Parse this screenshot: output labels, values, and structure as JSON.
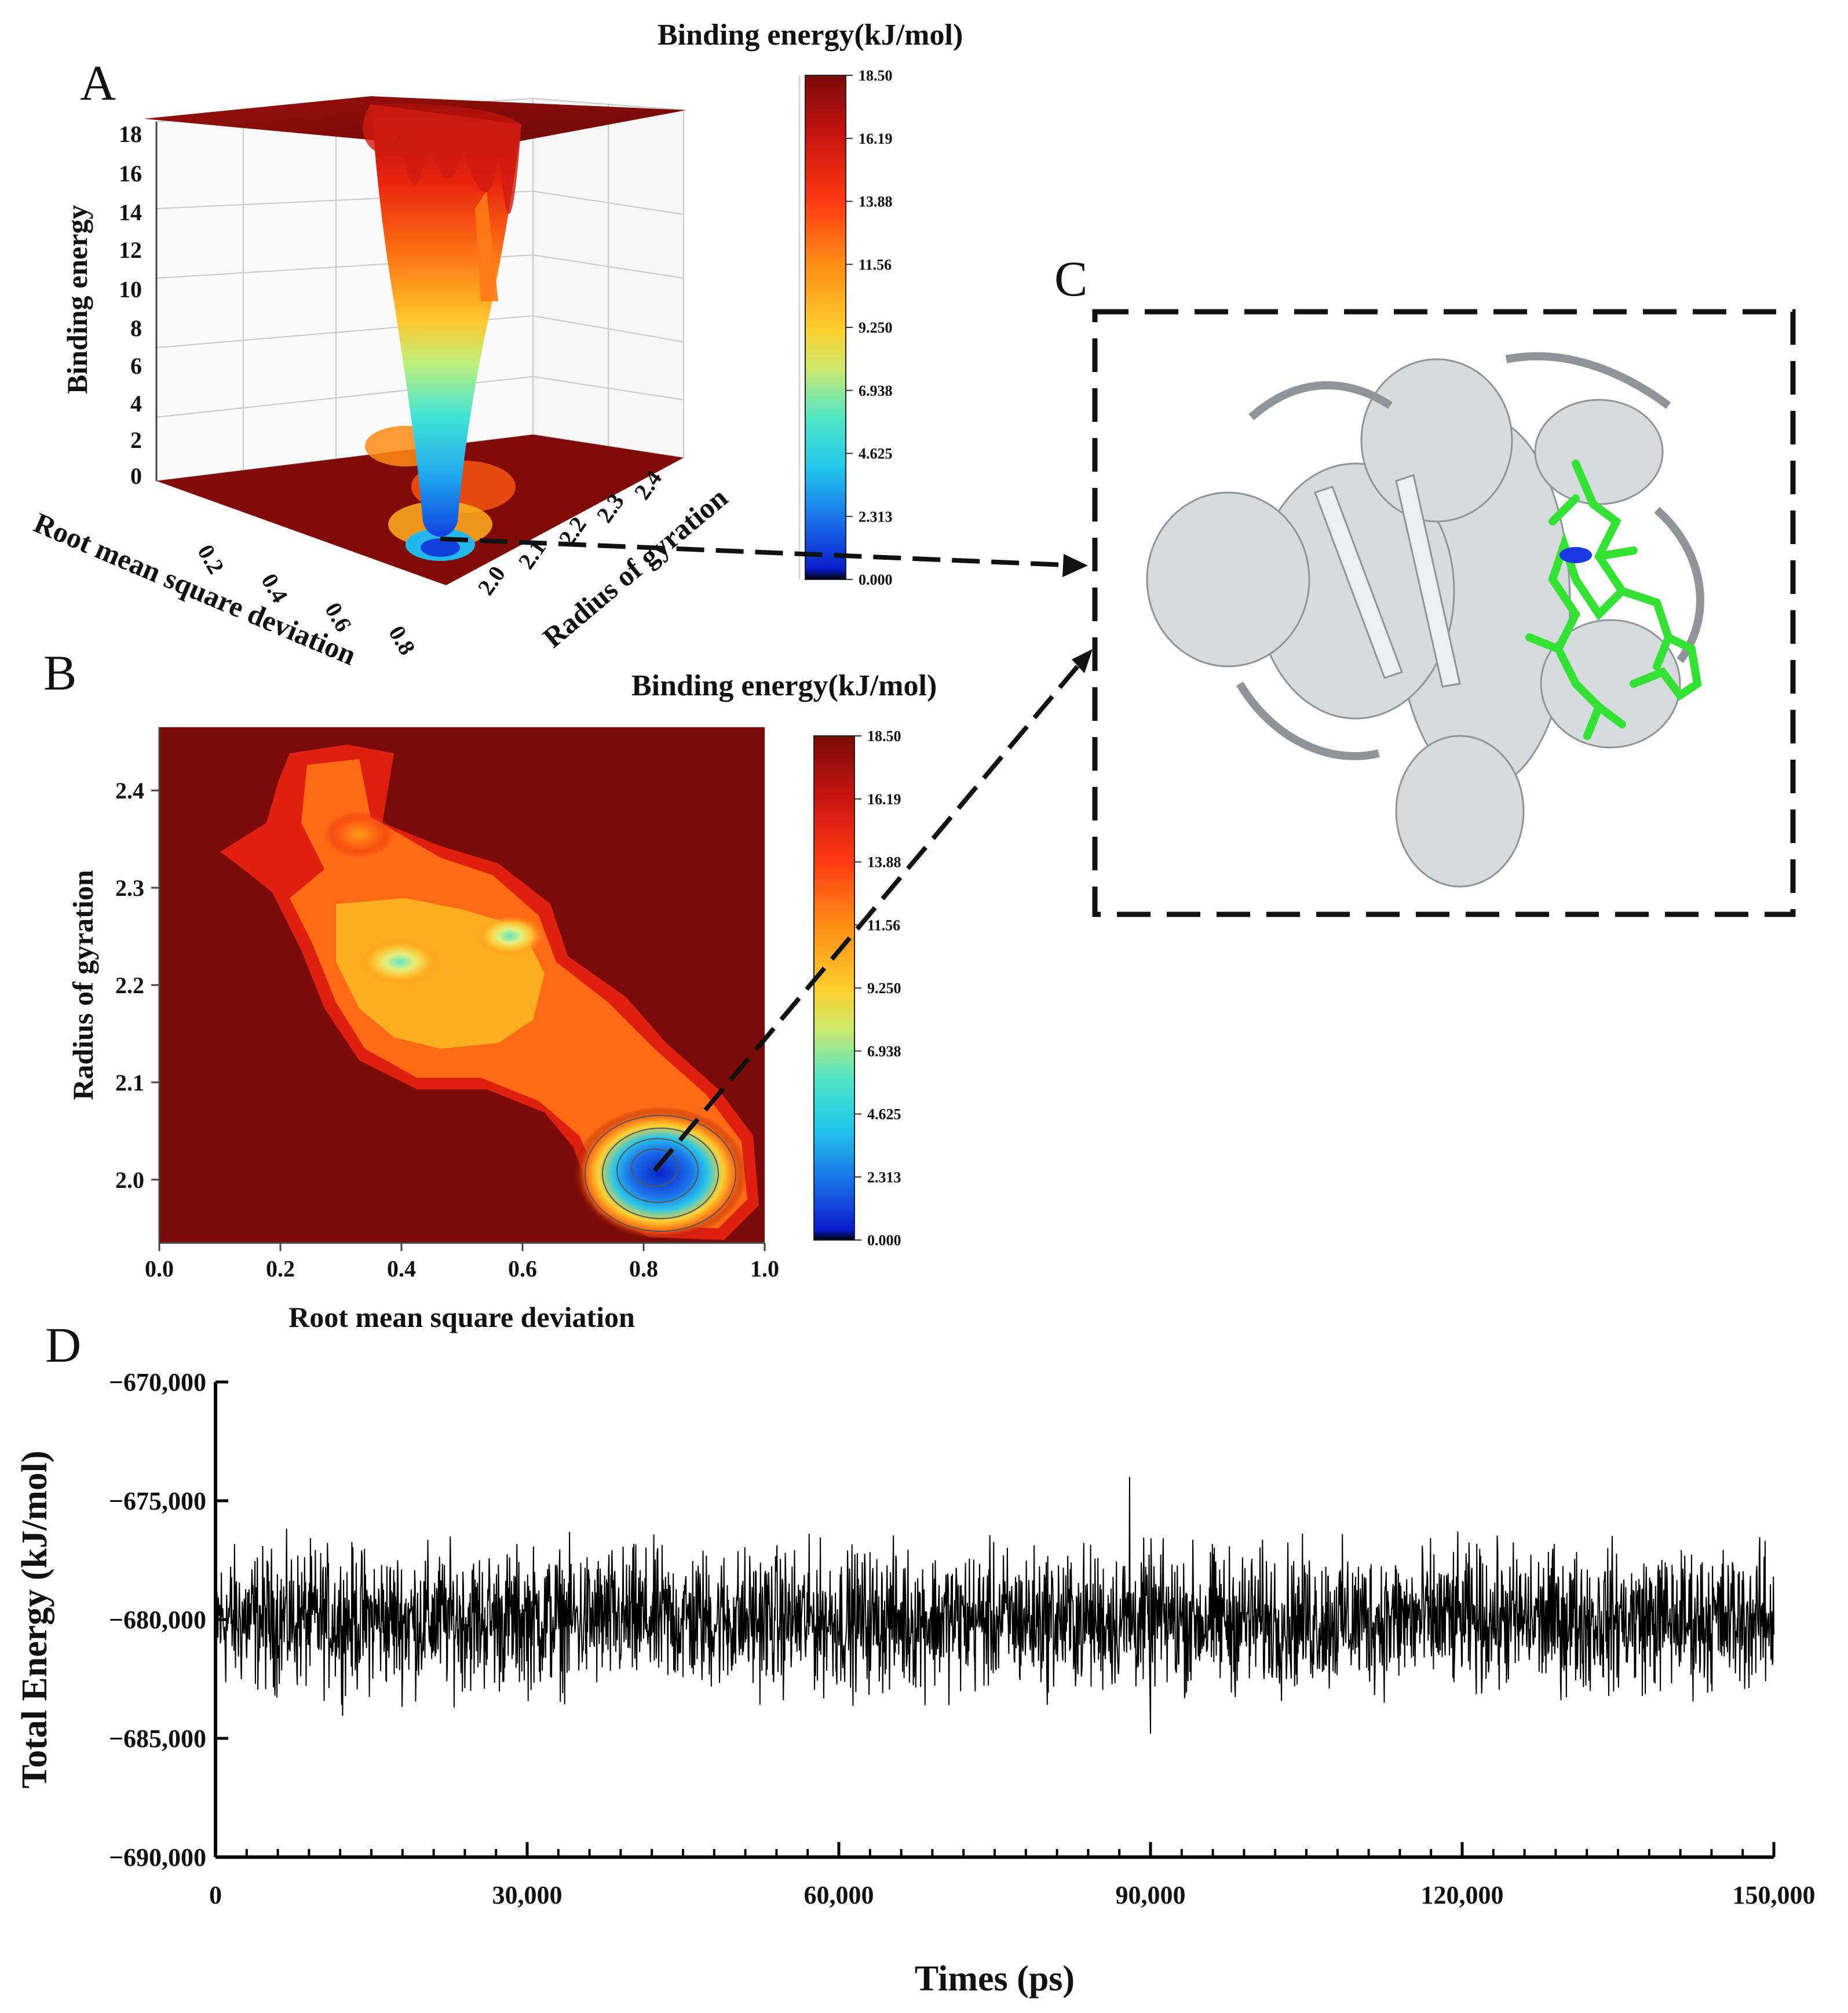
{
  "panels": {
    "a": "A",
    "b": "B",
    "c": "C",
    "d": "D"
  },
  "colorbar_title": "Binding energy(kJ/mol)",
  "colorbar_ticks": [
    "18.50",
    "16.19",
    "13.88",
    "11.56",
    "9.250",
    "6.938",
    "4.625",
    "2.313",
    "0.000"
  ],
  "colors": {
    "background_dark_red": "#7a0b08",
    "ligand_green": "#33e233",
    "protein_gray": "#d4d9dc",
    "trace": "#000000"
  },
  "chart_data": [
    {
      "id": "A",
      "type": "surface3d",
      "title": "Binding energy(kJ/mol)",
      "xlabel": "Root mean square deviation",
      "ylabel": "Radius of gyration",
      "zlabel": "Binding energy",
      "x_ticks": [
        "0.2",
        "0.4",
        "0.6",
        "0.8"
      ],
      "y_ticks": [
        "2.0",
        "2.1",
        "2.2",
        "2.3",
        "2.4"
      ],
      "z_ticks": [
        "0",
        "2",
        "4",
        "6",
        "8",
        "10",
        "12",
        "14",
        "16",
        "18"
      ],
      "zlim": [
        0,
        18.5
      ],
      "minimum": {
        "rmsd": 0.82,
        "rg": 2.01,
        "energy": 0.0
      }
    },
    {
      "id": "B",
      "type": "heatmap",
      "title": "Binding energy(kJ/mol)",
      "xlabel": "Root mean square deviation",
      "ylabel": "Radius of gyration",
      "x_ticks": [
        "0.0",
        "0.2",
        "0.4",
        "0.6",
        "0.8",
        "1.0"
      ],
      "y_ticks": [
        "2.0",
        "2.1",
        "2.2",
        "2.3",
        "2.4"
      ],
      "xlim": [
        0.0,
        1.0
      ],
      "ylim": [
        1.935,
        2.465
      ],
      "color_range": [
        0.0,
        18.5
      ],
      "basins": [
        {
          "rmsd": 0.82,
          "rg": 2.01,
          "energy": 0.0
        },
        {
          "rmsd": 0.38,
          "rg": 2.22,
          "energy": 8.5
        },
        {
          "rmsd": 0.56,
          "rg": 2.25,
          "energy": 8.0
        },
        {
          "rmsd": 0.28,
          "rg": 2.37,
          "energy": 13.5
        }
      ]
    },
    {
      "id": "D",
      "type": "line",
      "xlabel": "Times (ps)",
      "ylabel": "Total Energy (kJ/mol)",
      "x_ticks": [
        "0",
        "30,000",
        "60,000",
        "90,000",
        "120,000",
        "150,000"
      ],
      "y_ticks": [
        "−670,000",
        "−675,000",
        "−680,000",
        "−685,000",
        "−690,000"
      ],
      "xlim": [
        0,
        150000
      ],
      "ylim": [
        -690000,
        -670000
      ],
      "series": [
        {
          "mean": -680000,
          "typical_range": [
            -683000,
            -677000
          ],
          "max": -674000,
          "max_at": 88000,
          "min": -684800,
          "min_at": 90000
        }
      ]
    }
  ]
}
